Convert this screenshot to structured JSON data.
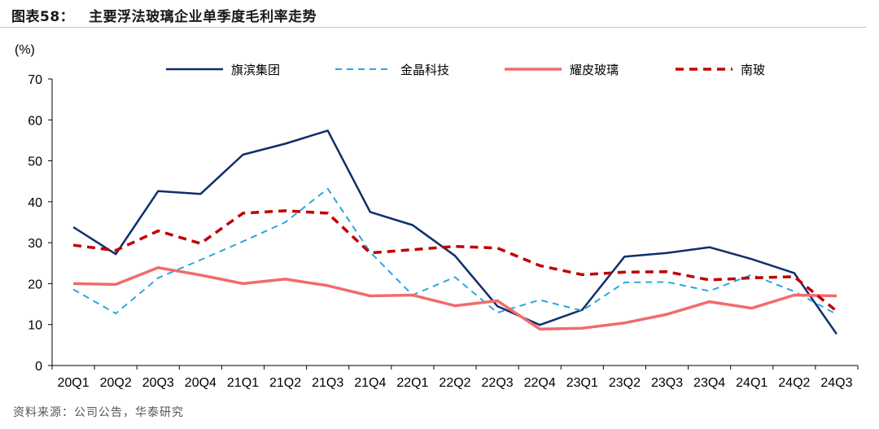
{
  "header": {
    "figure_number": "图表58：",
    "title": "主要浮法玻璃企业单季度毛利率走势"
  },
  "footer": {
    "source": "资料来源：公司公告，华泰研究"
  },
  "chart_data": {
    "type": "line",
    "unit_label": "(%)",
    "ylim": [
      0,
      70
    ],
    "yticks": [
      0,
      10,
      20,
      30,
      40,
      50,
      60,
      70
    ],
    "categories": [
      "20Q1",
      "20Q2",
      "20Q3",
      "20Q4",
      "21Q1",
      "21Q2",
      "21Q3",
      "21Q4",
      "22Q1",
      "22Q2",
      "22Q3",
      "22Q4",
      "23Q1",
      "23Q2",
      "23Q3",
      "23Q4",
      "24Q1",
      "24Q2",
      "24Q3"
    ],
    "legend_position": "top",
    "grid": false,
    "series": [
      {
        "name": "旗滨集团",
        "color": "#0f2e6b",
        "style": "solid",
        "values": [
          33.8,
          27.2,
          42.6,
          41.9,
          51.5,
          54.2,
          57.4,
          37.5,
          34.3,
          26.8,
          14.5,
          9.9,
          13.6,
          26.6,
          27.5,
          28.9,
          26.0,
          22.6,
          7.7
        ]
      },
      {
        "name": "金晶科技",
        "color": "#29a8e0",
        "style": "dashed",
        "values": [
          18.6,
          12.7,
          21.4,
          25.8,
          30.3,
          35.0,
          43.2,
          27.7,
          17.2,
          21.6,
          12.9,
          16.0,
          13.4,
          20.3,
          20.4,
          18.2,
          22.2,
          18.1,
          12.5
        ]
      },
      {
        "name": "耀皮玻璃",
        "color": "#f26b6b",
        "style": "solid",
        "values": [
          20.0,
          19.8,
          23.9,
          22.1,
          20.0,
          21.1,
          19.5,
          17.0,
          17.2,
          14.6,
          15.8,
          8.9,
          9.1,
          10.4,
          12.5,
          15.6,
          14.0,
          17.2,
          17.0
        ]
      },
      {
        "name": "南玻",
        "color": "#c00000",
        "style": "dashed",
        "values": [
          29.4,
          28.1,
          32.9,
          29.8,
          37.2,
          37.8,
          37.2,
          27.5,
          28.3,
          29.1,
          28.7,
          24.4,
          22.2,
          22.8,
          22.9,
          20.9,
          21.4,
          21.7,
          13.3
        ]
      }
    ]
  }
}
